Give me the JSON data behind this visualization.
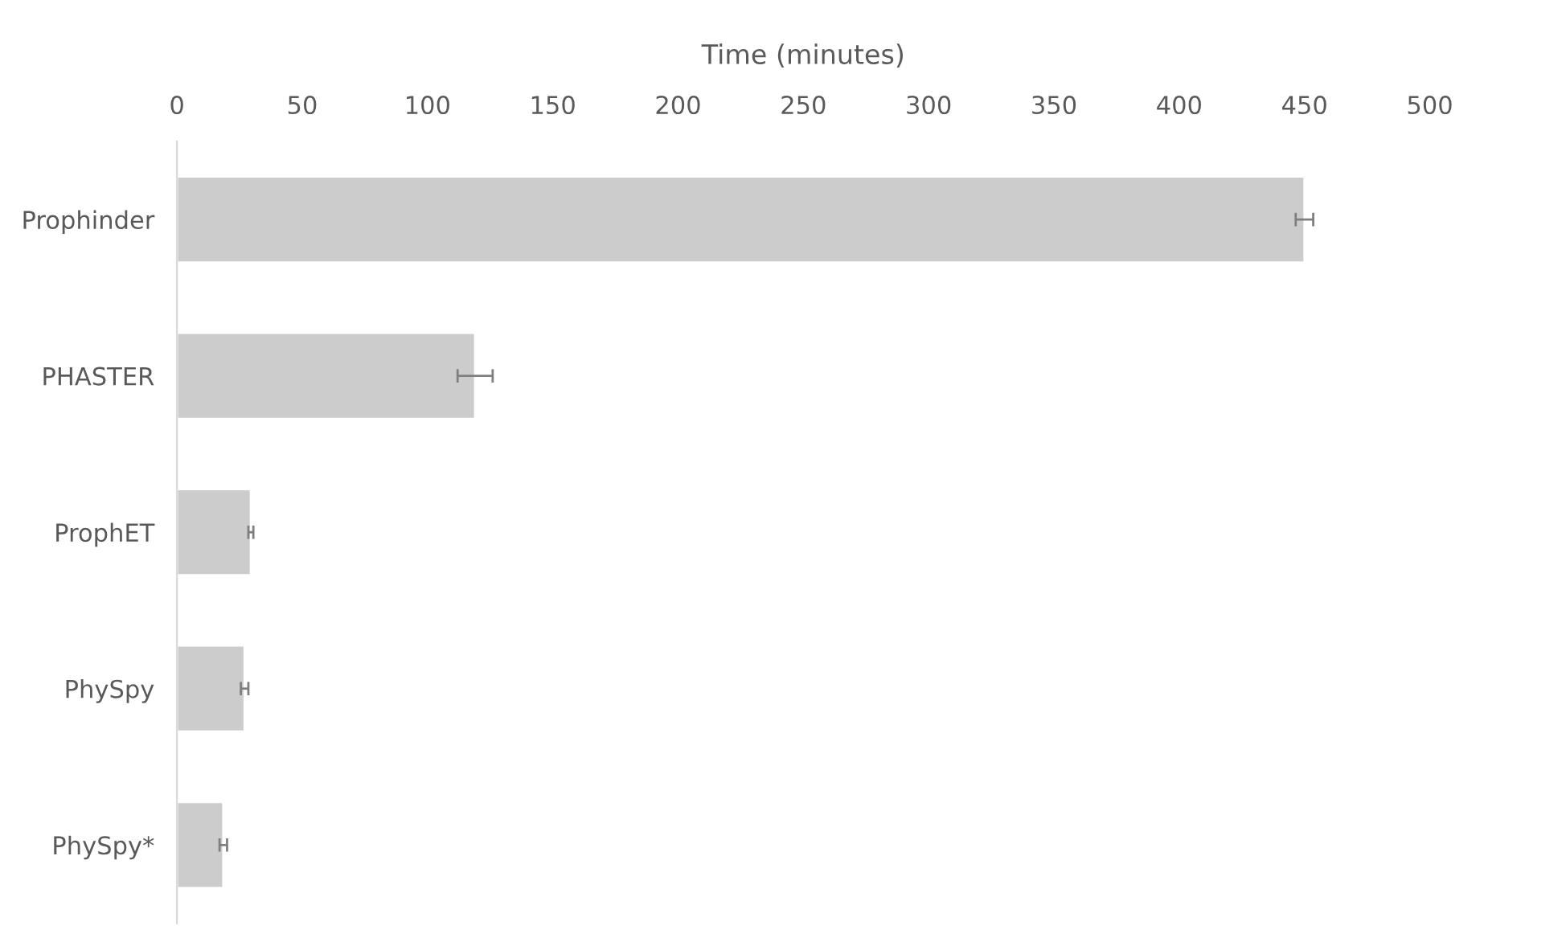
{
  "chart_data": {
    "type": "bar",
    "orientation": "horizontal",
    "xlabel": "Time (minutes)",
    "categories": [
      "Prophinder",
      "PHASTER",
      "ProphET",
      "PhySpy",
      "PhySpy*"
    ],
    "values": [
      450,
      119,
      29.5,
      27,
      18.5
    ],
    "errors": [
      3.5,
      7,
      1,
      1.5,
      1.5
    ],
    "color": "#cccccc",
    "xlim": [
      0,
      500
    ],
    "xticks": [
      0,
      50,
      100,
      150,
      200,
      250,
      300,
      350,
      400,
      450,
      500
    ],
    "grid": false,
    "legend": false
  }
}
